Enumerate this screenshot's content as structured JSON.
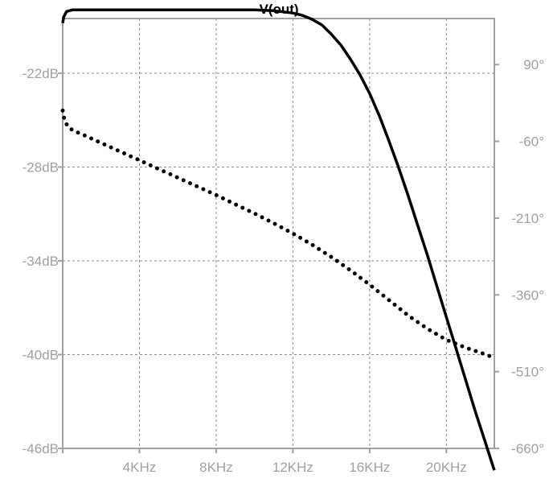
{
  "chart_data": {
    "type": "line",
    "title": "V(out)",
    "xlabel": "",
    "ylabel": "",
    "x_unit": "kHz",
    "xlim": [
      0,
      22.5
    ],
    "ylim_left": [
      -46,
      -18.5
    ],
    "ylim_right": [
      -660,
      180
    ],
    "x_ticks": [
      {
        "value": 4,
        "label": "4KHz"
      },
      {
        "value": 8,
        "label": "8KHz"
      },
      {
        "value": 12,
        "label": "12KHz"
      },
      {
        "value": 16,
        "label": "16KHz"
      },
      {
        "value": 20,
        "label": "20KHz"
      }
    ],
    "y_left_ticks": [
      {
        "value": -22,
        "label": "-22dB"
      },
      {
        "value": -28,
        "label": "-28dB"
      },
      {
        "value": -34,
        "label": "-34dB"
      },
      {
        "value": -40,
        "label": "-40dB"
      },
      {
        "value": -46,
        "label": "-46dB"
      }
    ],
    "y_right_ticks": [
      {
        "value": 90,
        "label": "90°"
      },
      {
        "value": -60,
        "label": "-60°"
      },
      {
        "value": -210,
        "label": "-210°"
      },
      {
        "value": -360,
        "label": "-360°"
      },
      {
        "value": -510,
        "label": "-510°"
      },
      {
        "value": -660,
        "label": "-660°"
      }
    ],
    "grid": true,
    "series": [
      {
        "axis": "left",
        "style": "solid",
        "color": "#000000",
        "x": [
          0,
          0.05,
          0.2,
          0.5,
          1,
          2,
          4,
          6,
          8,
          10,
          11,
          12,
          12.5,
          13,
          13.5,
          14,
          14.5,
          15,
          15.5,
          16,
          16.5,
          17,
          17.5,
          18,
          18.5,
          19,
          19.5,
          20,
          20.5,
          21,
          21.5,
          22,
          22.5
        ],
        "y": [
          -18.8,
          -18.4,
          -18.05,
          -17.95,
          -17.95,
          -17.95,
          -17.95,
          -17.95,
          -17.95,
          -17.95,
          -18.0,
          -18.15,
          -18.3,
          -18.55,
          -18.9,
          -19.5,
          -20.2,
          -21.1,
          -22.1,
          -23.3,
          -24.7,
          -26.3,
          -28.0,
          -29.8,
          -31.7,
          -33.6,
          -35.6,
          -37.6,
          -39.6,
          -41.6,
          -43.6,
          -45.5,
          -47.4
        ]
      },
      {
        "axis": "right",
        "style": "dotted",
        "color": "#000000",
        "x": [
          0,
          0.1,
          0.3,
          0.6,
          1,
          2,
          3,
          4,
          5,
          6,
          7,
          8,
          9,
          10,
          11,
          12,
          13,
          14,
          15,
          16,
          17,
          18,
          19,
          20,
          21,
          22,
          22.5
        ],
        "y": [
          0,
          -20,
          -33,
          -40,
          -46,
          -63,
          -80,
          -97,
          -114,
          -131,
          -148,
          -165,
          -183,
          -201,
          -220,
          -240,
          -262,
          -286,
          -312,
          -340,
          -370,
          -400,
          -426,
          -448,
          -463,
          -476,
          -483
        ]
      }
    ]
  }
}
